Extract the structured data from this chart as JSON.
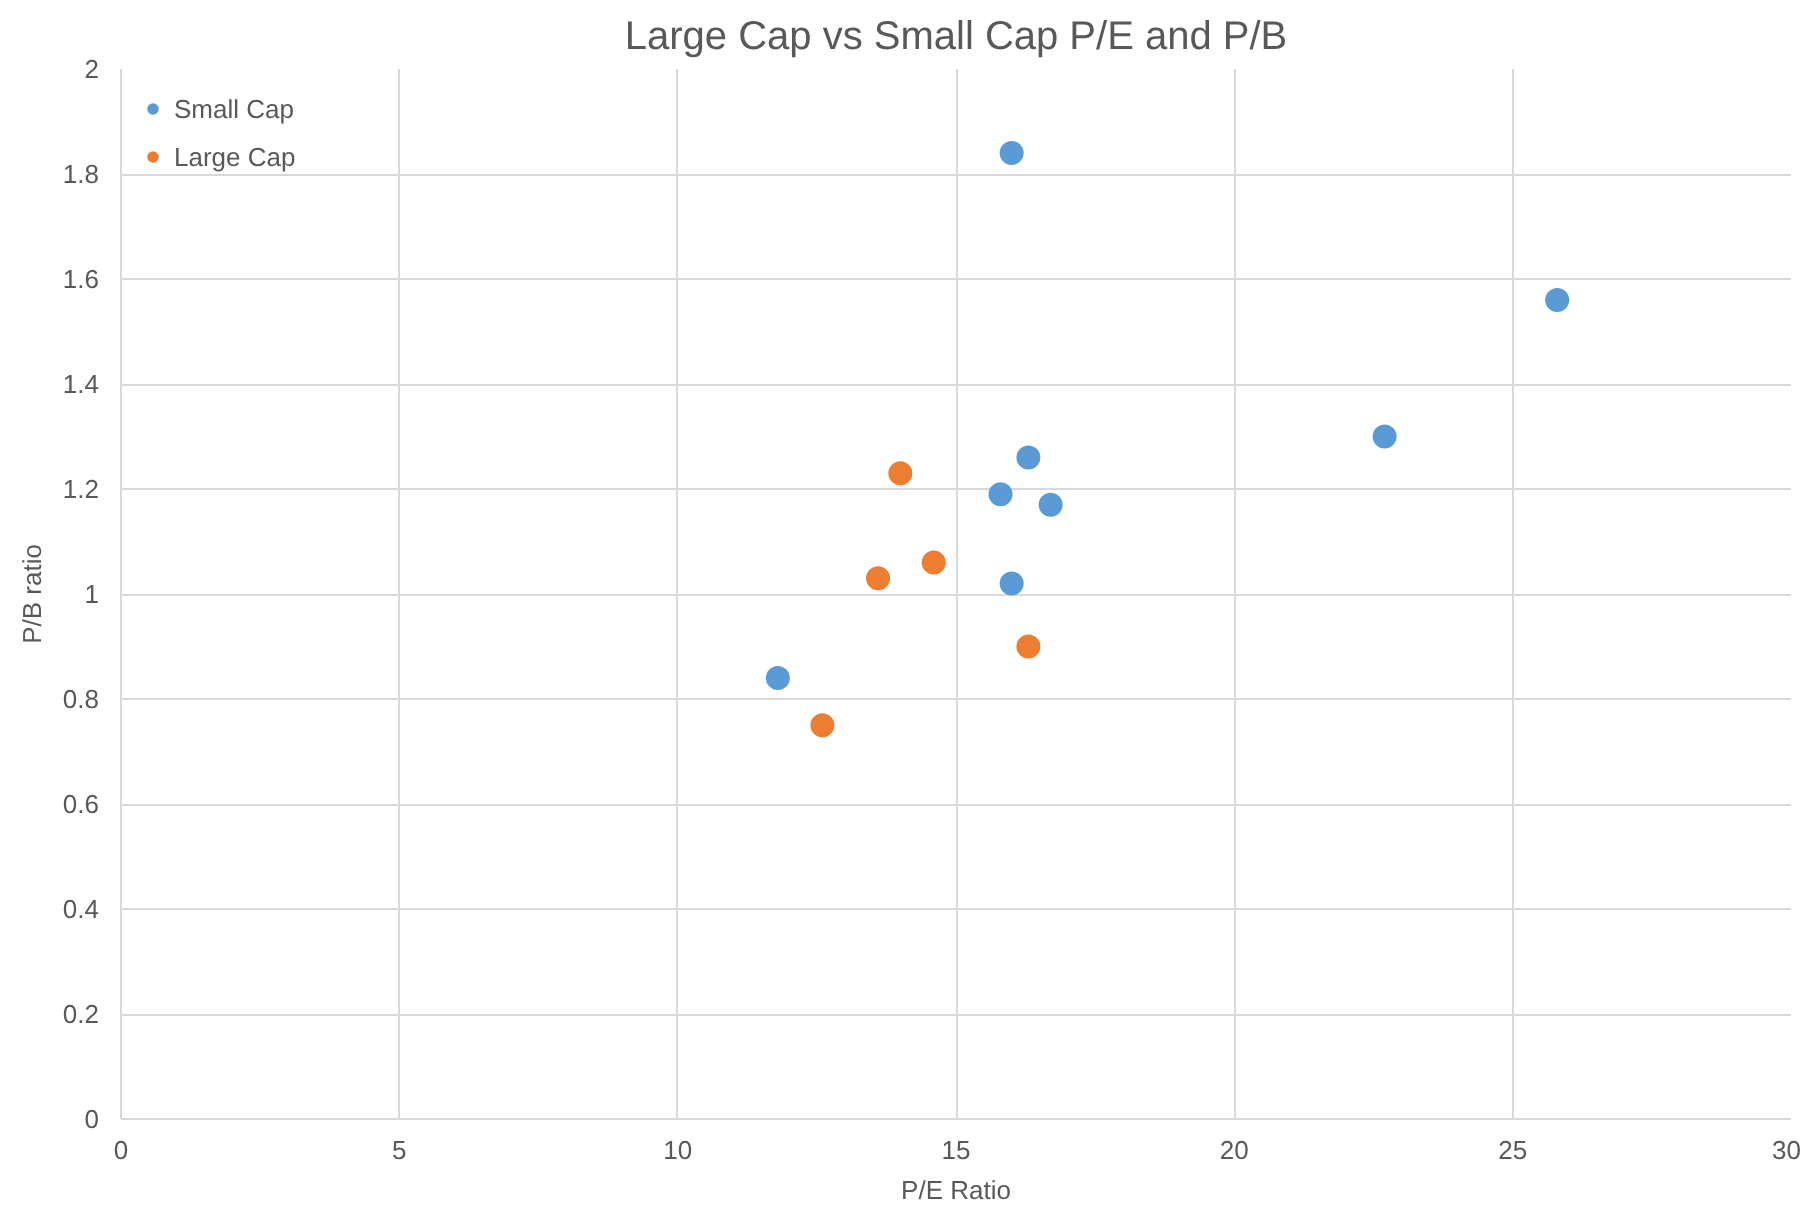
{
  "chart_data": {
    "type": "scatter",
    "title": "Large Cap vs Small Cap P/E and P/B",
    "xlabel": "P/E Ratio",
    "ylabel": "P/B ratio",
    "xlim": [
      0,
      30
    ],
    "ylim": [
      0,
      2
    ],
    "xticks": [
      0,
      5,
      10,
      15,
      20,
      25,
      30
    ],
    "yticks": [
      0,
      0.2,
      0.4,
      0.6,
      0.8,
      1,
      1.2,
      1.4,
      1.6,
      1.8,
      2
    ],
    "grid": true,
    "legend": "top left",
    "marker": "circle",
    "series": [
      {
        "name": "Small Cap",
        "color": "#5b9bd5",
        "x": [
          16.0,
          25.8,
          22.7,
          16.3,
          15.8,
          16.7,
          16.0,
          11.8
        ],
        "values": [
          1.84,
          1.56,
          1.3,
          1.26,
          1.19,
          1.17,
          1.02,
          0.84
        ]
      },
      {
        "name": "Large Cap",
        "color": "#ed7d31",
        "x": [
          14.0,
          14.6,
          13.6,
          16.3,
          12.6
        ],
        "values": [
          1.23,
          1.06,
          1.03,
          0.9,
          0.75
        ]
      }
    ]
  }
}
